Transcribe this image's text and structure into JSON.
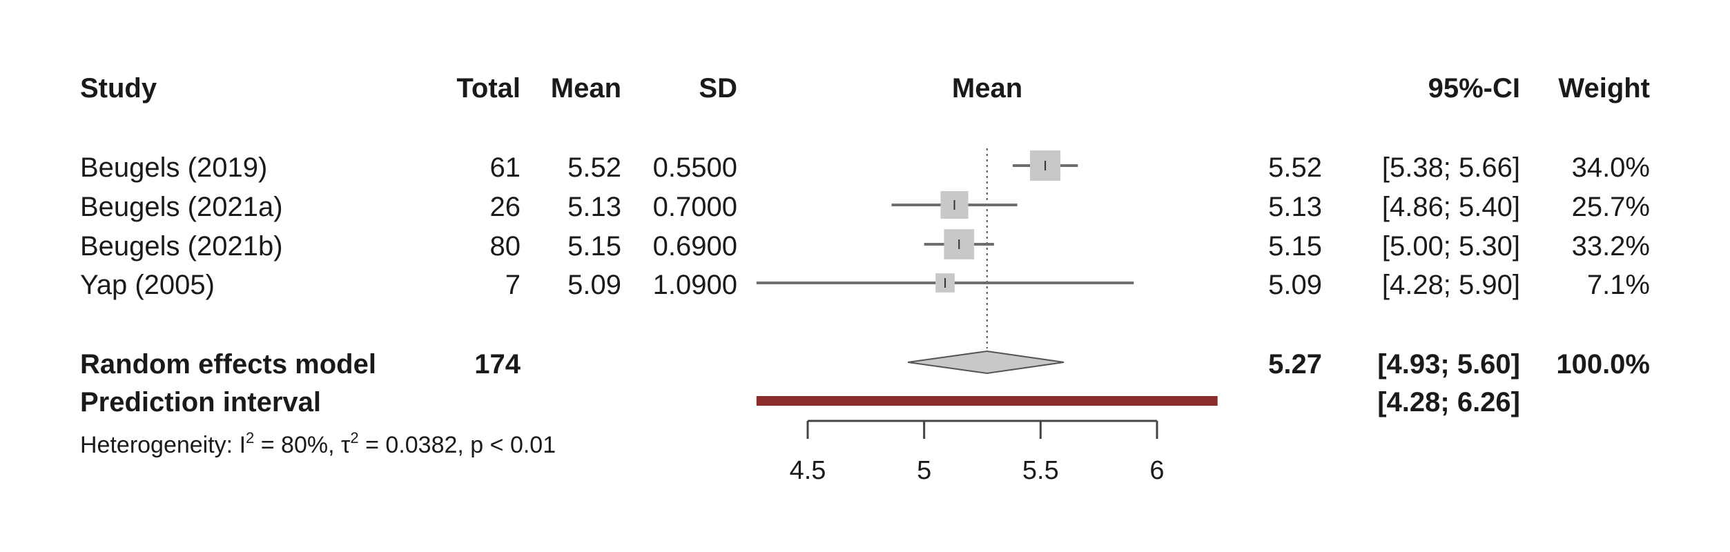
{
  "headers": {
    "study": "Study",
    "total": "Total",
    "mean": "Mean",
    "sd": "SD",
    "plot": "Mean",
    "ci": "95%-CI",
    "weight": "Weight"
  },
  "studies": [
    {
      "name": "Beugels (2019)",
      "total": "61",
      "mean": "5.52",
      "sd": "0.5500",
      "est": "5.52",
      "ci": "[5.38; 5.66]",
      "weight": "34.0%"
    },
    {
      "name": "Beugels (2021a)",
      "total": "26",
      "mean": "5.13",
      "sd": "0.7000",
      "est": "5.13",
      "ci": "[4.86; 5.40]",
      "weight": "25.7%"
    },
    {
      "name": "Beugels (2021b)",
      "total": "80",
      "mean": "5.15",
      "sd": "0.6900",
      "est": "5.15",
      "ci": "[5.00; 5.30]",
      "weight": "33.2%"
    },
    {
      "name": "Yap (2005)",
      "total": "7",
      "mean": "5.09",
      "sd": "1.0900",
      "est": "5.09",
      "ci": "[4.28; 5.90]",
      "weight": "7.1%"
    }
  ],
  "summary": {
    "label": "Random effects model",
    "total": "174",
    "est": "5.27",
    "ci": "[4.93; 5.60]",
    "weight": "100.0%"
  },
  "prediction": {
    "label": "Prediction interval",
    "ci": "[4.28; 6.26]"
  },
  "heterogeneity": {
    "prefix": "Heterogeneity: I",
    "i2": " = 80%, τ",
    "tau2": " = 0.0382, p < 0.01",
    "sup": "2"
  },
  "chart_data": {
    "type": "forest",
    "x_ticks": [
      "4.5",
      "5",
      "5.5",
      "6"
    ],
    "xlim": [
      4.5,
      6
    ],
    "reference_line": 5.27,
    "series": [
      {
        "name": "Beugels (2019)",
        "mean": 5.52,
        "lower": 5.38,
        "upper": 5.66,
        "weight": 34.0
      },
      {
        "name": "Beugels (2021a)",
        "mean": 5.13,
        "lower": 4.86,
        "upper": 5.4,
        "weight": 25.7
      },
      {
        "name": "Beugels (2021b)",
        "mean": 5.15,
        "lower": 5.0,
        "upper": 5.3,
        "weight": 33.2
      },
      {
        "name": "Yap (2005)",
        "mean": 5.09,
        "lower": 4.28,
        "upper": 5.9,
        "weight": 7.1
      }
    ],
    "summary": {
      "name": "Random effects model",
      "mean": 5.27,
      "lower": 4.93,
      "upper": 5.6
    },
    "prediction_interval": {
      "lower": 4.28,
      "upper": 6.26
    },
    "colors": {
      "box": "#c8c8c8",
      "line": "#6e6e6e",
      "diamond": "#c8c8c8",
      "prediction": "#8b2b2b",
      "text": "#1a1a1a"
    }
  }
}
